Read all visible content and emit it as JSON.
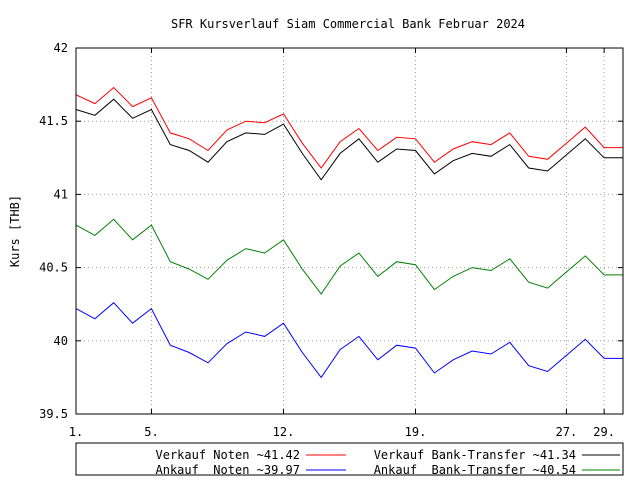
{
  "chart_data": {
    "type": "line",
    "title": "SFR Kursverlauf Siam Commercial Bank Februar 2024",
    "xlabel": "",
    "ylabel": "Kurs [THB]",
    "xlim": [
      1,
      30
    ],
    "ylim": [
      39.5,
      42
    ],
    "grid": true,
    "legend_position": "bottom",
    "x_ticks": [
      {
        "value": 1,
        "label": "1."
      },
      {
        "value": 5,
        "label": "5."
      },
      {
        "value": 12,
        "label": "12."
      },
      {
        "value": 19,
        "label": "19."
      },
      {
        "value": 27,
        "label": "27."
      },
      {
        "value": 29,
        "label": "29."
      }
    ],
    "y_ticks": [
      {
        "value": 39.5,
        "label": "39.5"
      },
      {
        "value": 40,
        "label": "40"
      },
      {
        "value": 40.5,
        "label": "40.5"
      },
      {
        "value": 41,
        "label": "41"
      },
      {
        "value": 41.5,
        "label": "41.5"
      },
      {
        "value": 42,
        "label": "42"
      }
    ],
    "x": [
      1,
      2,
      3,
      4,
      5,
      6,
      7,
      8,
      9,
      10,
      11,
      12,
      13,
      14,
      15,
      16,
      17,
      18,
      19,
      20,
      21,
      22,
      23,
      24,
      25,
      26,
      27,
      28,
      29,
      30
    ],
    "series": [
      {
        "name": "Verkauf Noten ~41.42",
        "color": "#ff0000",
        "legend_label": "Verkauf Noten ~41.42",
        "values": [
          41.68,
          41.62,
          41.73,
          41.6,
          41.66,
          41.42,
          41.38,
          41.3,
          41.44,
          41.5,
          41.49,
          41.55,
          41.35,
          41.18,
          41.36,
          41.45,
          41.3,
          41.39,
          41.38,
          41.22,
          41.31,
          41.36,
          41.34,
          41.42,
          41.26,
          41.24,
          41.35,
          41.46,
          41.32,
          41.32
        ]
      },
      {
        "name": "Verkauf Bank-Transfer ~41.34",
        "color": "#000000",
        "legend_label": "Verkauf Bank-Transfer ~41.34",
        "values": [
          41.58,
          41.54,
          41.65,
          41.52,
          41.58,
          41.34,
          41.3,
          41.22,
          41.36,
          41.42,
          41.41,
          41.48,
          41.28,
          41.1,
          41.28,
          41.38,
          41.22,
          41.31,
          41.3,
          41.14,
          41.23,
          41.28,
          41.26,
          41.34,
          41.18,
          41.16,
          41.27,
          41.38,
          41.25,
          41.25
        ]
      },
      {
        "name": "Ankauf Noten ~39.97",
        "color": "#0000ff",
        "legend_label": "Ankauf  Noten ~39.97",
        "values": [
          40.22,
          40.15,
          40.26,
          40.12,
          40.22,
          39.97,
          39.92,
          39.85,
          39.98,
          40.06,
          40.03,
          40.12,
          39.92,
          39.75,
          39.94,
          40.03,
          39.87,
          39.97,
          39.95,
          39.78,
          39.87,
          39.93,
          39.91,
          39.99,
          39.83,
          39.79,
          39.9,
          40.01,
          39.88,
          39.88
        ]
      },
      {
        "name": "Ankauf Bank-Transfer ~40.54",
        "color": "#008000",
        "legend_label": "Ankauf  Bank-Transfer ~40.54",
        "values": [
          40.79,
          40.72,
          40.83,
          40.69,
          40.79,
          40.54,
          40.49,
          40.42,
          40.55,
          40.63,
          40.6,
          40.69,
          40.49,
          40.32,
          40.51,
          40.6,
          40.44,
          40.54,
          40.52,
          40.35,
          40.44,
          40.5,
          40.48,
          40.56,
          40.4,
          40.36,
          40.47,
          40.58,
          40.45,
          40.45
        ]
      }
    ]
  }
}
